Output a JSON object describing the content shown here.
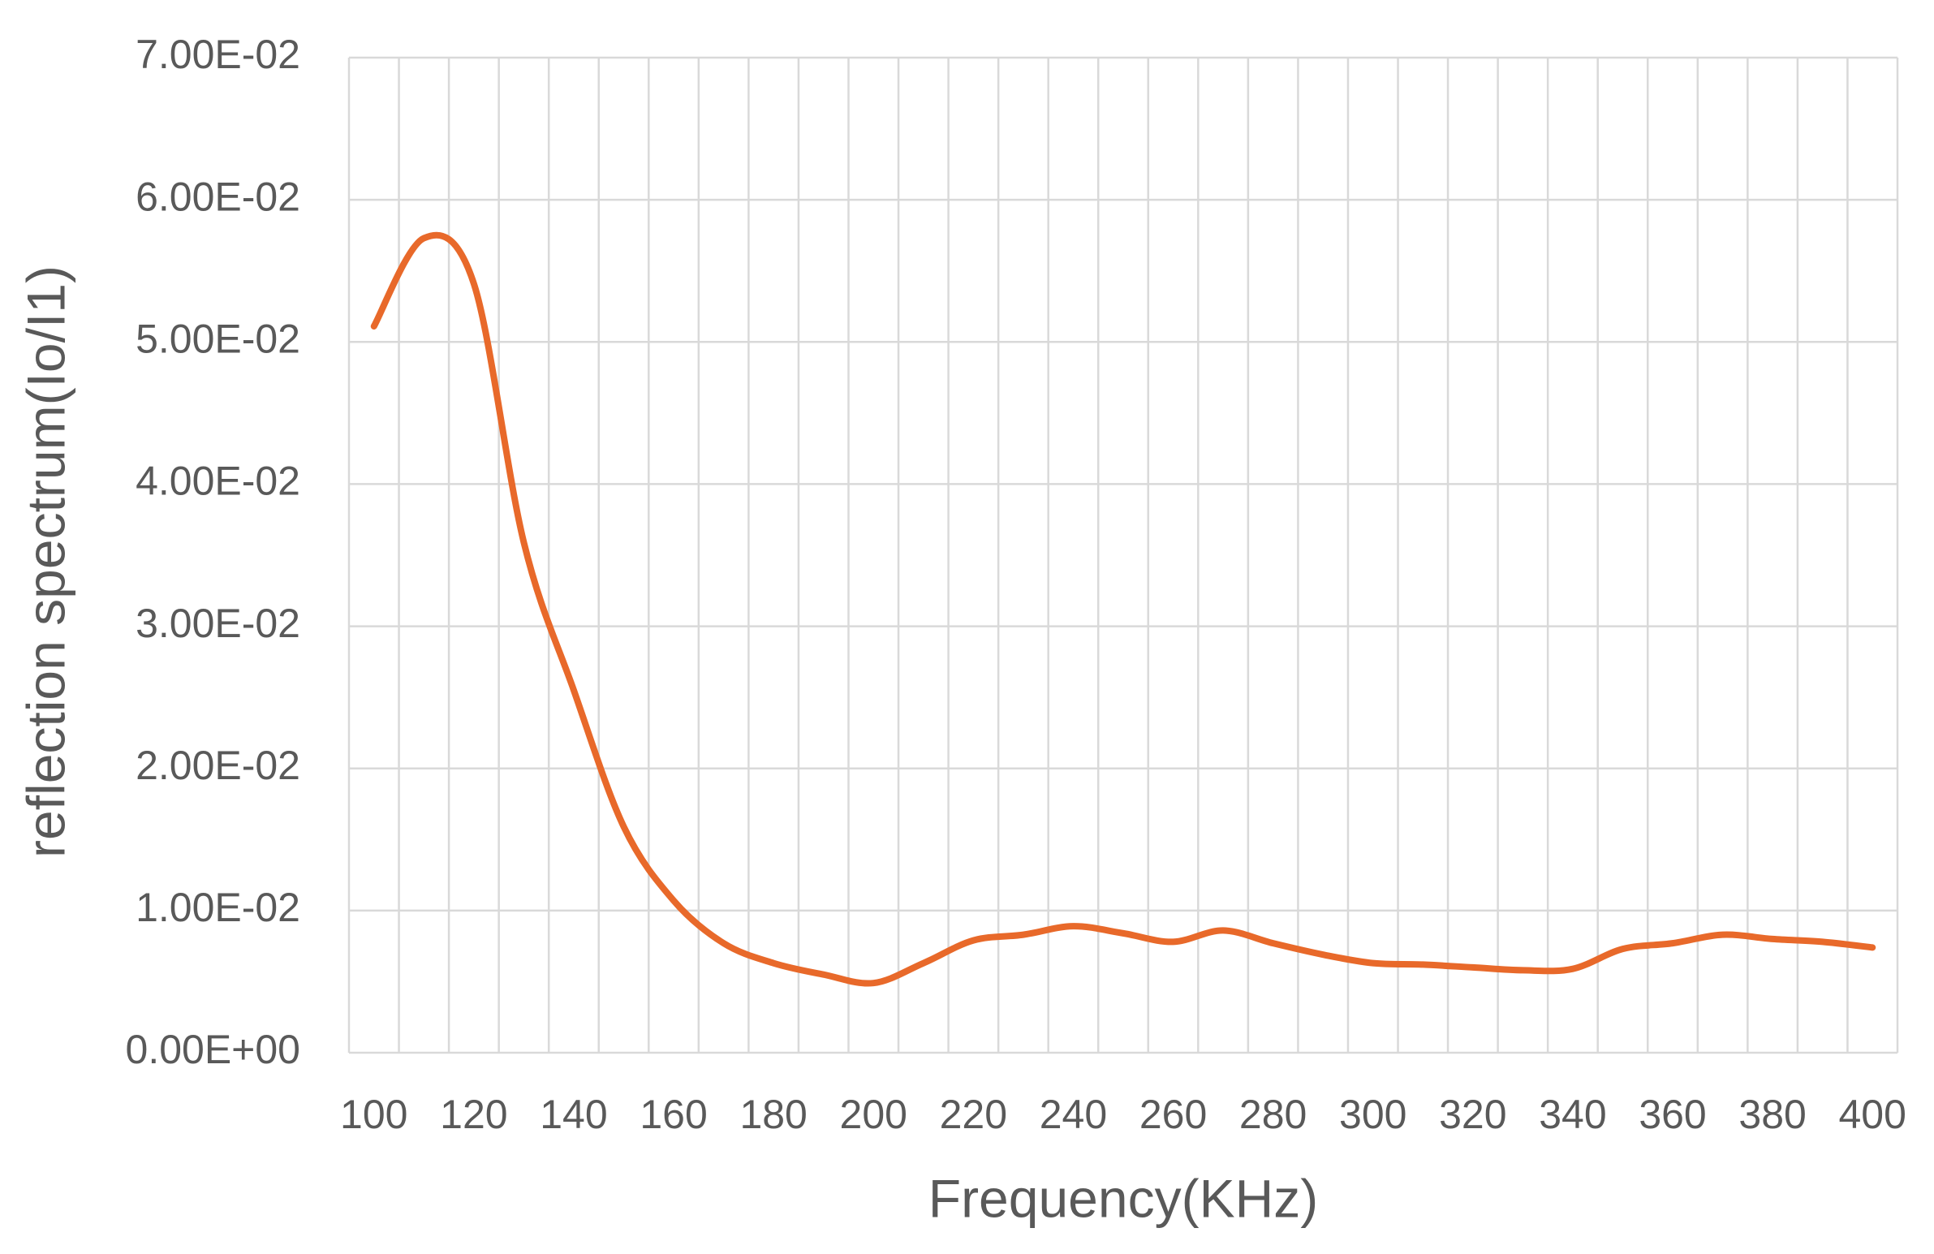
{
  "chart_data": {
    "type": "line",
    "x_label": "Frequency(KHz)",
    "y_label": "reflection spectrum(Io/I1)",
    "categories": [
      "100",
      null,
      "120",
      null,
      "140",
      null,
      "160",
      null,
      "180",
      null,
      "200",
      null,
      "220",
      null,
      "240",
      null,
      "260",
      null,
      "280",
      null,
      "300",
      null,
      "320",
      null,
      "340",
      null,
      "360",
      null,
      "380",
      null,
      "400"
    ],
    "series": [
      {
        "color": "#e8692a",
        "values": [
          0.0511,
          0.0573,
          0.0541,
          0.0359,
          0.0255,
          0.0159,
          0.0107,
          0.0077,
          0.0063,
          0.0055,
          0.0049,
          0.0063,
          0.0079,
          0.0083,
          0.0089,
          0.0084,
          0.0078,
          0.0086,
          0.0077,
          0.0069,
          0.0063,
          0.0062,
          0.006,
          0.0058,
          0.0059,
          0.0073,
          0.0077,
          0.0083,
          0.008,
          0.0078,
          0.0074
        ]
      }
    ],
    "ylim": [
      0,
      0.07
    ],
    "yticks": [
      {
        "value": 0,
        "label": "0.00E+00"
      },
      {
        "value": 0.01,
        "label": "1.00E-02"
      },
      {
        "value": 0.02,
        "label": "2.00E-02"
      },
      {
        "value": 0.03,
        "label": "3.00E-02"
      },
      {
        "value": 0.04,
        "label": "4.00E-02"
      },
      {
        "value": 0.05,
        "label": "5.00E-02"
      },
      {
        "value": 0.06,
        "label": "6.00E-02"
      },
      {
        "value": 0.07,
        "label": "7.00E-02"
      }
    ],
    "grid": true
  }
}
